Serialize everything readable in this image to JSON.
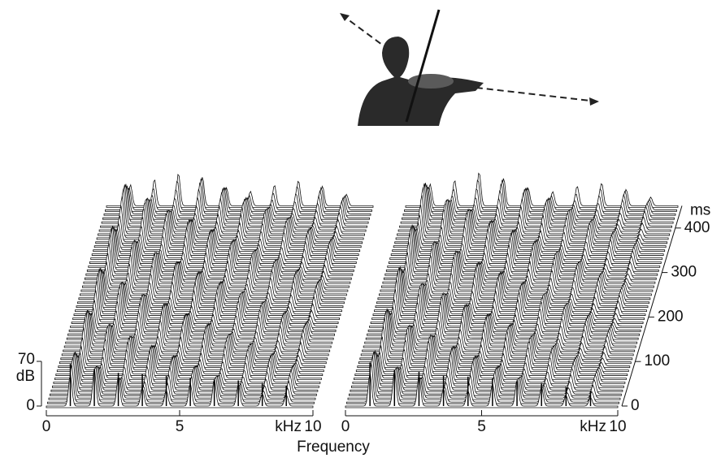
{
  "chart_data": [
    {
      "type": "waterfall",
      "harmonics": [
        0.9,
        1.8,
        2.7,
        3.6,
        4.5,
        5.4,
        6.3,
        7.2,
        8.1,
        9.0
      ],
      "levels": [
        66,
        58,
        52,
        50,
        47,
        44,
        42,
        40,
        36,
        32
      ],
      "xlim": [
        0,
        10
      ],
      "xticks": [
        0,
        5,
        10
      ],
      "x_unit": "kHz",
      "zlim": [
        0,
        70
      ],
      "zticks": [
        0,
        70
      ],
      "z_label": "dB",
      "ylim": [
        0,
        450
      ]
    },
    {
      "type": "waterfall",
      "harmonics": [
        0.9,
        1.8,
        2.7,
        3.6,
        4.5,
        5.4,
        6.3,
        7.2,
        8.1,
        9.0
      ],
      "levels": [
        68,
        56,
        54,
        48,
        46,
        43,
        40,
        36,
        30,
        24
      ],
      "xlim": [
        0,
        10
      ],
      "xticks": [
        0,
        5,
        10
      ],
      "x_unit": "kHz",
      "ylim": [
        0,
        450
      ],
      "yticks": [
        0,
        100,
        200,
        300,
        400
      ],
      "y_label": "ms"
    }
  ],
  "figure": {
    "x_label": "Frequency"
  }
}
